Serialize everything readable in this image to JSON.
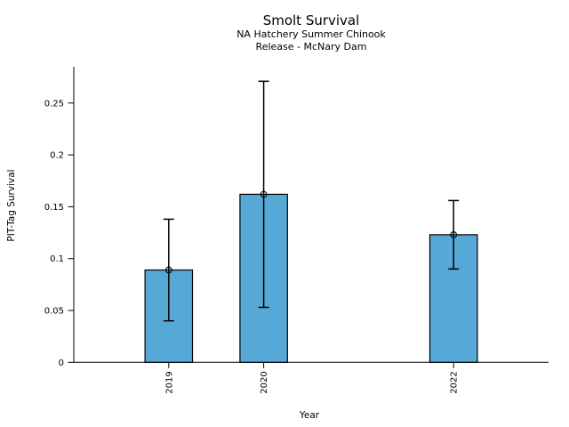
{
  "chart_data": {
    "type": "bar",
    "title": "Smolt Survival",
    "subtitle_line1": "NA Hatchery Summer Chinook",
    "subtitle_line2": "Release - McNary Dam",
    "xlabel": "Year",
    "ylabel": "PIT-Tag Survival",
    "categories": [
      "2019",
      "2020",
      "2022"
    ],
    "x": [
      2019,
      2020,
      2022
    ],
    "values": [
      0.089,
      0.162,
      0.123
    ],
    "error_low": [
      0.04,
      0.053,
      0.09
    ],
    "error_high": [
      0.138,
      0.271,
      0.156
    ],
    "bar_width_years": 0.5,
    "xlim": [
      2018,
      2023
    ],
    "ylim": [
      0,
      0.285
    ],
    "yticks": [
      0,
      0.05,
      0.1,
      0.15,
      0.2,
      0.25
    ],
    "ytick_labels": [
      "0",
      "0.05",
      "0.1",
      "0.15",
      "0.2",
      "0.25"
    ],
    "grid": false,
    "legend": null,
    "marker": "open-circle",
    "bar_color": "#56A9D6",
    "bar_edge_color": "#000000",
    "error_bar_color": "#000000",
    "text_color": "#000000",
    "background_color": "#FFFFFF"
  }
}
